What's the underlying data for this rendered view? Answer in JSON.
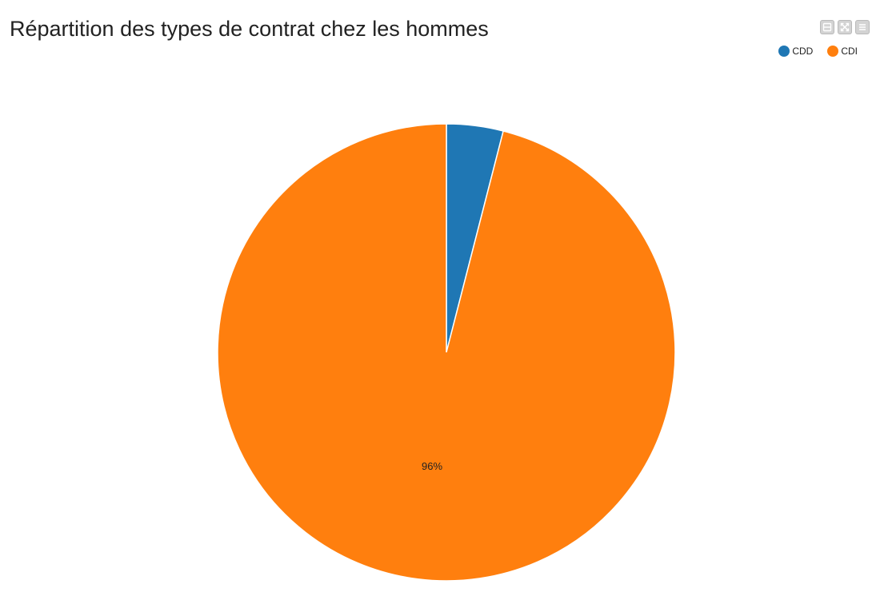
{
  "chart_data": {
    "type": "pie",
    "title": "Répartition des types de contrat chez les hommes",
    "slices": [
      {
        "label": "CDD",
        "value": 4,
        "color": "#1f77b4",
        "data_label": ""
      },
      {
        "label": "CDI",
        "value": 96,
        "color": "#ff7f0e",
        "data_label": "96%"
      }
    ],
    "legend_position": "top-right"
  },
  "toolbar": {
    "buttons": [
      {
        "icon": "minimize-icon"
      },
      {
        "icon": "fullscreen-icon"
      },
      {
        "icon": "menu-icon"
      }
    ]
  }
}
